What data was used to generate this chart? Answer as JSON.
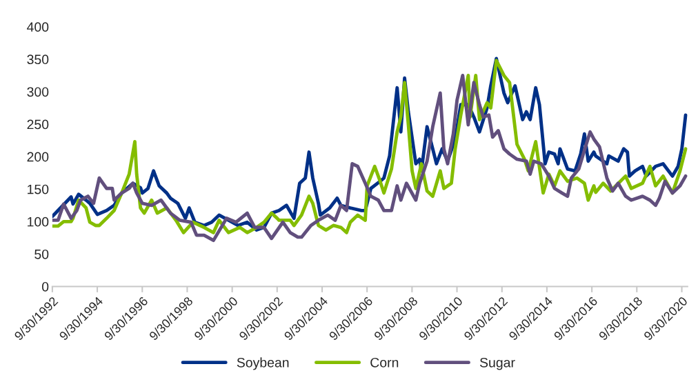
{
  "chart_data": {
    "type": "line",
    "xlim": [
      "1992-09-30",
      "2021-01-01"
    ],
    "xticks": [
      {
        "value": "1992-09-30",
        "label": "9/30/1992"
      },
      {
        "value": "1994-09-30",
        "label": "9/30/1994"
      },
      {
        "value": "1996-09-30",
        "label": "9/30/1996"
      },
      {
        "value": "1998-09-30",
        "label": "9/30/1998"
      },
      {
        "value": "2000-09-30",
        "label": "9/30/2000"
      },
      {
        "value": "2002-09-30",
        "label": "9/30/2002"
      },
      {
        "value": "2004-09-30",
        "label": "9/30/2004"
      },
      {
        "value": "2006-09-30",
        "label": "9/30/2006"
      },
      {
        "value": "2008-09-30",
        "label": "9/30/2008"
      },
      {
        "value": "2010-09-30",
        "label": "9/30/2010"
      },
      {
        "value": "2012-09-30",
        "label": "9/30/2012"
      },
      {
        "value": "2014-09-30",
        "label": "9/30/2014"
      },
      {
        "value": "2016-09-30",
        "label": "9/30/2016"
      },
      {
        "value": "2018-09-30",
        "label": "9/30/2018"
      },
      {
        "value": "2020-09-30",
        "label": "9/30/2020"
      }
    ],
    "ylim": [
      0,
      400
    ],
    "yticks": [
      0,
      50,
      100,
      150,
      200,
      250,
      300,
      350,
      400
    ],
    "grid": false,
    "legend": "bottom",
    "line_style": "solid",
    "series": [
      {
        "name": "Soybean",
        "color": "#003087",
        "x": [
          "1992-10",
          "1993-08",
          "1993-09",
          "1993-12",
          "1994-04",
          "1994-06",
          "1994-10",
          "1995-03",
          "1995-07",
          "1995-11",
          "1996-05",
          "1996-09",
          "1996-10",
          "1997-01",
          "1997-04",
          "1997-07",
          "1997-11",
          "1998-01",
          "1998-05",
          "1998-09",
          "1998-11",
          "1999-02",
          "1999-07",
          "1999-11",
          "2000-03",
          "2000-08",
          "2001-01",
          "2001-06",
          "2001-11",
          "2002-03",
          "2002-07",
          "2002-11",
          "2003-03",
          "2003-07",
          "2003-10",
          "2004-01",
          "2004-03",
          "2004-05",
          "2004-08",
          "2004-09",
          "2005-02",
          "2005-06",
          "2005-08",
          "2006-01",
          "2006-07",
          "2006-09",
          "2006-12",
          "2007-05",
          "2007-07",
          "2007-10",
          "2008-02",
          "2008-04",
          "2008-06",
          "2008-08",
          "2008-12",
          "2009-02",
          "2009-03",
          "2009-06",
          "2009-09",
          "2009-11",
          "2010-02",
          "2010-05",
          "2010-09",
          "2010-12",
          "2011-04",
          "2011-07",
          "2011-10",
          "2012-02",
          "2012-04",
          "2012-07",
          "2012-11",
          "2013-01",
          "2013-05",
          "2013-09",
          "2013-11",
          "2014-01",
          "2014-04",
          "2014-06",
          "2014-09",
          "2014-11",
          "2015-02",
          "2015-04",
          "2015-05",
          "2015-09",
          "2016-01",
          "2016-04",
          "2016-06",
          "2016-08",
          "2016-11",
          "2016-12",
          "2017-06",
          "2017-07",
          "2017-12",
          "2018-03",
          "2018-05",
          "2018-06",
          "2018-09",
          "2019-01",
          "2019-03",
          "2019-08",
          "2019-12",
          "2020-05",
          "2020-08",
          "2020-10",
          "2020-12"
        ],
        "values": [
          108,
          138,
          127,
          142,
          133,
          128,
          111,
          117,
          125,
          144,
          159,
          152,
          144,
          151,
          178,
          155,
          144,
          136,
          128,
          105,
          121,
          99,
          94,
          99,
          110,
          102,
          94,
          99,
          87,
          91,
          113,
          117,
          125,
          105,
          159,
          167,
          207,
          167,
          128,
          110,
          121,
          136,
          125,
          121,
          117,
          117,
          151,
          162,
          167,
          201,
          306,
          238,
          321,
          269,
          189,
          196,
          178,
          246,
          212,
          189,
          212,
          193,
          227,
          280,
          280,
          261,
          238,
          275,
          309,
          351,
          298,
          283,
          309,
          257,
          269,
          257,
          306,
          280,
          189,
          207,
          204,
          189,
          212,
          181,
          178,
          204,
          235,
          193,
          207,
          201,
          189,
          201,
          193,
          212,
          207,
          170,
          178,
          185,
          170,
          185,
          189,
          170,
          185,
          212,
          264
        ]
      },
      {
        "name": "Corn",
        "color": "#84bd00",
        "x": [
          "1992-10",
          "1993-01",
          "1993-04",
          "1993-08",
          "1993-09",
          "1993-12",
          "1994-04",
          "1994-06",
          "1994-09",
          "1994-11",
          "1995-03",
          "1995-07",
          "1995-11",
          "1996-03",
          "1996-06",
          "1996-07",
          "1996-09",
          "1996-11",
          "1997-03",
          "1997-06",
          "1997-11",
          "1998-04",
          "1998-08",
          "1999-01",
          "1999-07",
          "1999-12",
          "2000-03",
          "2000-08",
          "2001-02",
          "2001-06",
          "2001-11",
          "2002-03",
          "2002-07",
          "2002-10",
          "2002-11",
          "2003-05",
          "2003-07",
          "2003-11",
          "2004-03",
          "2004-05",
          "2004-08",
          "2004-12",
          "2005-04",
          "2005-08",
          "2005-11",
          "2006-01",
          "2006-05",
          "2006-09",
          "2006-10",
          "2007-02",
          "2007-05",
          "2007-07",
          "2007-11",
          "2008-02",
          "2008-04",
          "2008-06",
          "2008-08",
          "2008-10",
          "2008-12",
          "2009-03",
          "2009-06",
          "2009-09",
          "2010-01",
          "2010-03",
          "2010-07",
          "2010-09",
          "2010-12",
          "2011-04",
          "2011-05",
          "2011-08",
          "2011-10",
          "2012-02",
          "2012-04",
          "2012-07",
          "2012-11",
          "2013-02",
          "2013-06",
          "2013-10",
          "2013-12",
          "2014-04",
          "2014-08",
          "2014-11",
          "2015-02",
          "2015-05",
          "2015-09",
          "2016-02",
          "2016-06",
          "2016-08",
          "2016-11",
          "2016-12",
          "2017-04",
          "2017-08",
          "2018-04",
          "2018-07",
          "2019-01",
          "2019-05",
          "2019-08",
          "2019-12",
          "2020-05",
          "2020-09",
          "2020-12"
        ],
        "values": [
          93,
          93,
          100,
          100,
          105,
          133,
          121,
          99,
          94,
          94,
          105,
          117,
          144,
          173,
          223,
          173,
          121,
          113,
          133,
          113,
          121,
          102,
          83,
          99,
          91,
          83,
          102,
          83,
          91,
          83,
          91,
          99,
          113,
          105,
          102,
          102,
          94,
          110,
          139,
          128,
          94,
          87,
          94,
          91,
          83,
          99,
          110,
          102,
          155,
          185,
          162,
          144,
          181,
          238,
          261,
          314,
          249,
          178,
          151,
          189,
          147,
          139,
          178,
          151,
          159,
          212,
          264,
          325,
          261,
          325,
          257,
          283,
          275,
          348,
          325,
          314,
          219,
          196,
          178,
          223,
          144,
          173,
          155,
          178,
          162,
          167,
          159,
          133,
          155,
          145,
          159,
          147,
          170,
          151,
          159,
          185,
          155,
          170,
          144,
          178,
          212
        ]
      },
      {
        "name": "Sugar",
        "color": "#614f7d",
        "x": [
          "1992-10",
          "1993-01",
          "1993-04",
          "1993-08",
          "1993-11",
          "1994-01",
          "1994-05",
          "1994-08",
          "1994-11",
          "1995-03",
          "1995-06",
          "1995-07",
          "1995-11",
          "1996-03",
          "1996-05",
          "1996-07",
          "1996-10",
          "1997-03",
          "1997-08",
          "1997-10",
          "1998-01",
          "1998-06",
          "1998-12",
          "1999-03",
          "1999-07",
          "1999-12",
          "2000-07",
          "2000-12",
          "2001-06",
          "2001-10",
          "2002-03",
          "2002-07",
          "2003-01",
          "2003-05",
          "2003-09",
          "2003-11",
          "2004-04",
          "2004-08",
          "2005-01",
          "2005-05",
          "2005-08",
          "2005-11",
          "2006-02",
          "2006-05",
          "2006-09",
          "2006-12",
          "2007-04",
          "2007-07",
          "2007-11",
          "2008-02",
          "2008-04",
          "2008-07",
          "2008-12",
          "2009-02",
          "2009-06",
          "2009-09",
          "2010-01",
          "2010-03",
          "2010-05",
          "2010-08",
          "2010-10",
          "2011-01",
          "2011-04",
          "2011-07",
          "2011-10",
          "2011-12",
          "2012-03",
          "2012-05",
          "2012-08",
          "2012-11",
          "2013-02",
          "2013-06",
          "2013-11",
          "2014-01",
          "2014-03",
          "2014-07",
          "2014-11",
          "2015-02",
          "2015-06",
          "2015-09",
          "2015-11",
          "2016-03",
          "2016-07",
          "2016-09",
          "2016-11",
          "2017-02",
          "2017-06",
          "2017-09",
          "2017-12",
          "2018-04",
          "2018-07",
          "2019-01",
          "2019-05",
          "2019-08",
          "2019-10",
          "2020-01",
          "2020-05",
          "2020-09",
          "2020-12"
        ],
        "values": [
          102,
          102,
          127,
          105,
          117,
          133,
          139,
          128,
          167,
          151,
          151,
          133,
          144,
          151,
          159,
          144,
          128,
          125,
          133,
          125,
          113,
          102,
          99,
          79,
          79,
          71,
          105,
          99,
          113,
          91,
          91,
          74,
          99,
          83,
          76,
          76,
          94,
          102,
          110,
          102,
          125,
          117,
          189,
          185,
          159,
          139,
          133,
          117,
          117,
          155,
          133,
          159,
          133,
          159,
          193,
          246,
          298,
          212,
          189,
          235,
          287,
          325,
          249,
          314,
          280,
          261,
          264,
          230,
          240,
          212,
          204,
          196,
          193,
          173,
          193,
          189,
          170,
          151,
          144,
          139,
          167,
          181,
          219,
          238,
          227,
          215,
          167,
          147,
          159,
          139,
          133,
          139,
          133,
          125,
          136,
          162,
          144,
          155,
          170
        ]
      }
    ]
  }
}
